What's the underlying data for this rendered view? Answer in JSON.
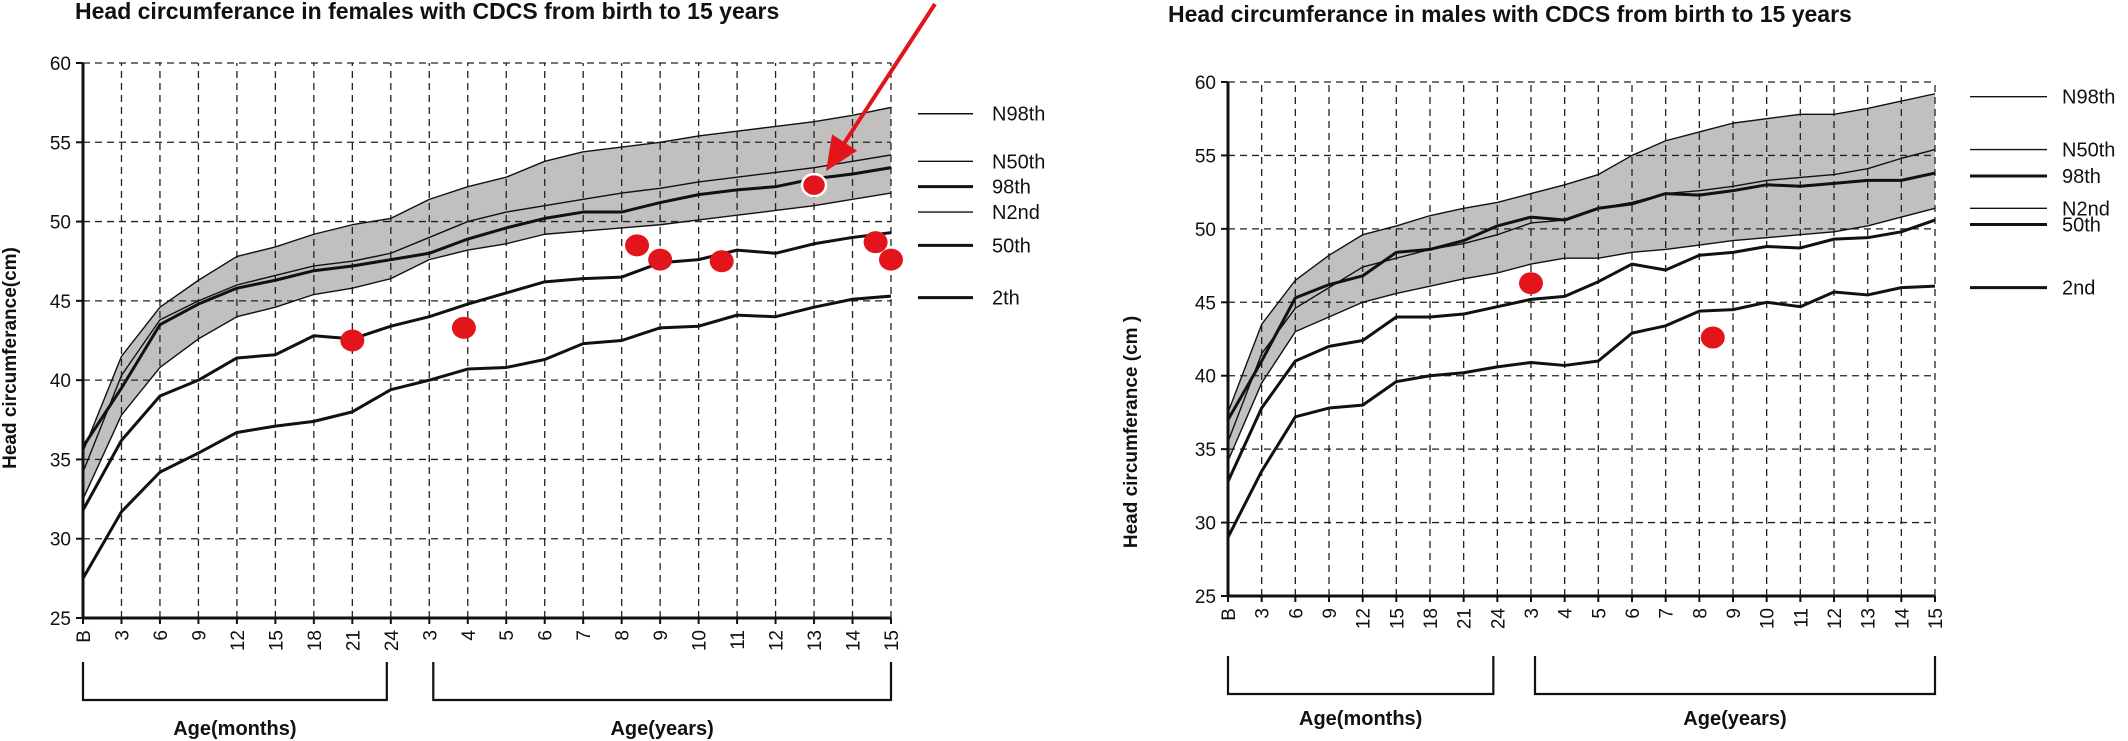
{
  "chart_data": [
    {
      "type": "line",
      "title": "Head circumferance in females with CDCS from birth to 15 years",
      "ylabel": "Head circumferance(cm)",
      "ylim": [
        25,
        60
      ],
      "yticks": [
        "25",
        "30",
        "35",
        "40",
        "45",
        "50",
        "55",
        "60"
      ],
      "categories": [
        "B",
        "3",
        "6",
        "9",
        "12",
        "15",
        "18",
        "21",
        "24",
        "3",
        "4",
        "5",
        "6",
        "7",
        "8",
        "9",
        "10",
        "11",
        "12",
        "13",
        "14",
        "15"
      ],
      "groups": [
        {
          "label": "Age(months)",
          "from": 0,
          "to": 8
        },
        {
          "label": "Age(years)",
          "from": 9,
          "to": 21
        }
      ],
      "grid": "dashed",
      "band": {
        "lower": "N2nd",
        "upper": "N98th",
        "color": "#c2bfbf"
      },
      "series": [
        {
          "name": "N98th",
          "width": 1.4,
          "values": [
            35.5,
            41.5,
            44.6,
            46.3,
            47.8,
            48.4,
            49.2,
            49.8,
            50.2,
            51.4,
            52.2,
            52.8,
            53.8,
            54.4,
            54.7,
            55.0,
            55.4,
            55.7,
            56.0,
            56.3,
            56.7,
            57.2
          ]
        },
        {
          "name": "N50th",
          "width": 1.4,
          "values": [
            34.2,
            40.3,
            43.8,
            45.0,
            46.0,
            46.6,
            47.2,
            47.5,
            48.0,
            49.0,
            50.0,
            50.6,
            51.0,
            51.4,
            51.8,
            52.1,
            52.5,
            52.8,
            53.1,
            53.4,
            53.8,
            54.2
          ]
        },
        {
          "name": "98th",
          "width": 3.0,
          "values": [
            35.8,
            39.5,
            43.5,
            44.8,
            45.8,
            46.3,
            46.9,
            47.2,
            47.6,
            48.0,
            48.9,
            49.6,
            50.2,
            50.6,
            50.6,
            51.2,
            51.7,
            52.0,
            52.2,
            52.7,
            53.0,
            53.4
          ]
        },
        {
          "name": "N2nd",
          "width": 1.4,
          "values": [
            32.5,
            37.8,
            40.8,
            42.6,
            44.0,
            44.6,
            45.4,
            45.8,
            46.4,
            47.6,
            48.2,
            48.6,
            49.2,
            49.4,
            49.6,
            49.8,
            50.1,
            50.4,
            50.7,
            51.0,
            51.4,
            51.8
          ]
        },
        {
          "name": "50th",
          "width": 3.0,
          "values": [
            31.8,
            36.2,
            39.0,
            40.0,
            41.4,
            41.6,
            42.8,
            42.6,
            43.4,
            44.0,
            44.8,
            45.5,
            46.2,
            46.4,
            46.5,
            47.4,
            47.6,
            48.2,
            48.0,
            48.6,
            49.0,
            49.3
          ]
        },
        {
          "name": "2th",
          "width": 3.0,
          "values": [
            27.5,
            31.7,
            34.2,
            35.4,
            36.7,
            37.1,
            37.4,
            38.0,
            39.4,
            40.0,
            40.7,
            40.8,
            41.3,
            42.3,
            42.5,
            43.3,
            43.4,
            44.1,
            44.0,
            44.6,
            45.1,
            45.3
          ]
        }
      ],
      "legend": [
        {
          "name": "N98th",
          "y": 56.8
        },
        {
          "name": "N50th",
          "y": 53.8
        },
        {
          "name": "98th",
          "y": 52.2
        },
        {
          "name": "N2nd",
          "y": 50.6
        },
        {
          "name": "50th",
          "y": 48.5
        },
        {
          "name": "2th",
          "y": 45.2
        }
      ],
      "points": [
        {
          "x": 7.0,
          "y": 42.5
        },
        {
          "x": 9.9,
          "y": 43.3
        },
        {
          "x": 14.4,
          "y": 48.5
        },
        {
          "x": 15.0,
          "y": 47.6
        },
        {
          "x": 16.6,
          "y": 47.5
        },
        {
          "x": 19.0,
          "y": 52.3
        },
        {
          "x": 20.6,
          "y": 48.7
        },
        {
          "x": 21.0,
          "y": 47.6
        }
      ],
      "highlight": {
        "point": 5
      },
      "point_color": "#e2141c",
      "arrow_color": "#e2141c"
    },
    {
      "type": "line",
      "title": "Head circumferance in males with CDCS from birth to 15 years",
      "ylabel": "Head circumferance (cm )",
      "ylim": [
        25,
        60
      ],
      "yticks": [
        "25",
        "30",
        "35",
        "40",
        "45",
        "50",
        "55",
        "60"
      ],
      "categories": [
        "B",
        "3",
        "6",
        "9",
        "12",
        "15",
        "18",
        "21",
        "24",
        "3",
        "4",
        "5",
        "6",
        "7",
        "8",
        "9",
        "10",
        "11",
        "12",
        "13",
        "14",
        "15"
      ],
      "groups": [
        {
          "label": "Age(months)",
          "from": 0,
          "to": 8
        },
        {
          "label": "Age(years)",
          "from": 9,
          "to": 21
        }
      ],
      "grid": "dashed",
      "band": {
        "lower": "N2nd",
        "upper": "N98th",
        "color": "#c2bfbf"
      },
      "series": [
        {
          "name": "N98th",
          "width": 1.4,
          "values": [
            37.5,
            43.5,
            46.5,
            48.2,
            49.6,
            50.2,
            50.9,
            51.4,
            51.8,
            52.4,
            53.0,
            53.7,
            55.0,
            56.0,
            56.6,
            57.2,
            57.5,
            57.8,
            57.8,
            58.2,
            58.7,
            59.2
          ]
        },
        {
          "name": "N50th",
          "width": 1.4,
          "values": [
            35.5,
            41.5,
            44.6,
            46.0,
            47.4,
            48.0,
            48.6,
            49.0,
            49.6,
            50.4,
            50.6,
            51.4,
            51.8,
            52.4,
            52.6,
            52.9,
            53.3,
            53.5,
            53.7,
            54.1,
            54.8,
            55.4
          ]
        },
        {
          "name": "98th",
          "width": 3.0,
          "values": [
            37.0,
            41.0,
            45.3,
            46.2,
            46.8,
            48.4,
            48.6,
            49.2,
            50.2,
            50.8,
            50.6,
            51.4,
            51.7,
            52.4,
            52.3,
            52.6,
            53.0,
            52.9,
            53.1,
            53.3,
            53.3,
            53.8
          ]
        },
        {
          "name": "N2nd",
          "width": 1.4,
          "values": [
            34.2,
            39.5,
            43.0,
            44.0,
            45.0,
            45.6,
            46.1,
            46.6,
            47.0,
            47.6,
            48.0,
            48.0,
            48.4,
            48.6,
            48.9,
            49.2,
            49.4,
            49.6,
            49.8,
            50.2,
            50.8,
            51.4
          ]
        },
        {
          "name": "50th",
          "width": 3.0,
          "values": [
            32.8,
            37.8,
            41.0,
            42.0,
            42.4,
            44.0,
            44.0,
            44.2,
            44.7,
            45.2,
            45.4,
            46.4,
            47.6,
            47.2,
            48.2,
            48.4,
            48.8,
            48.7,
            49.3,
            49.4,
            49.8,
            50.6
          ]
        },
        {
          "name": "2nd",
          "width": 3.0,
          "values": [
            29.0,
            33.5,
            37.2,
            37.8,
            38.0,
            39.6,
            40.0,
            40.2,
            40.6,
            40.9,
            40.7,
            41.0,
            42.9,
            43.4,
            44.4,
            44.5,
            45.0,
            44.7,
            45.7,
            45.5,
            46.0,
            46.1
          ]
        }
      ],
      "legend": [
        {
          "name": "N98th",
          "y": 59.0
        },
        {
          "name": "N50th",
          "y": 55.4
        },
        {
          "name": "98th",
          "y": 53.6
        },
        {
          "name": "N2nd",
          "y": 51.4
        },
        {
          "name": "50th",
          "y": 50.3
        },
        {
          "name": "2nd",
          "y": 46.0
        }
      ],
      "points": [
        {
          "x": 9.0,
          "y": 46.3
        },
        {
          "x": 14.4,
          "y": 42.6
        }
      ],
      "point_color": "#e2141c"
    }
  ]
}
